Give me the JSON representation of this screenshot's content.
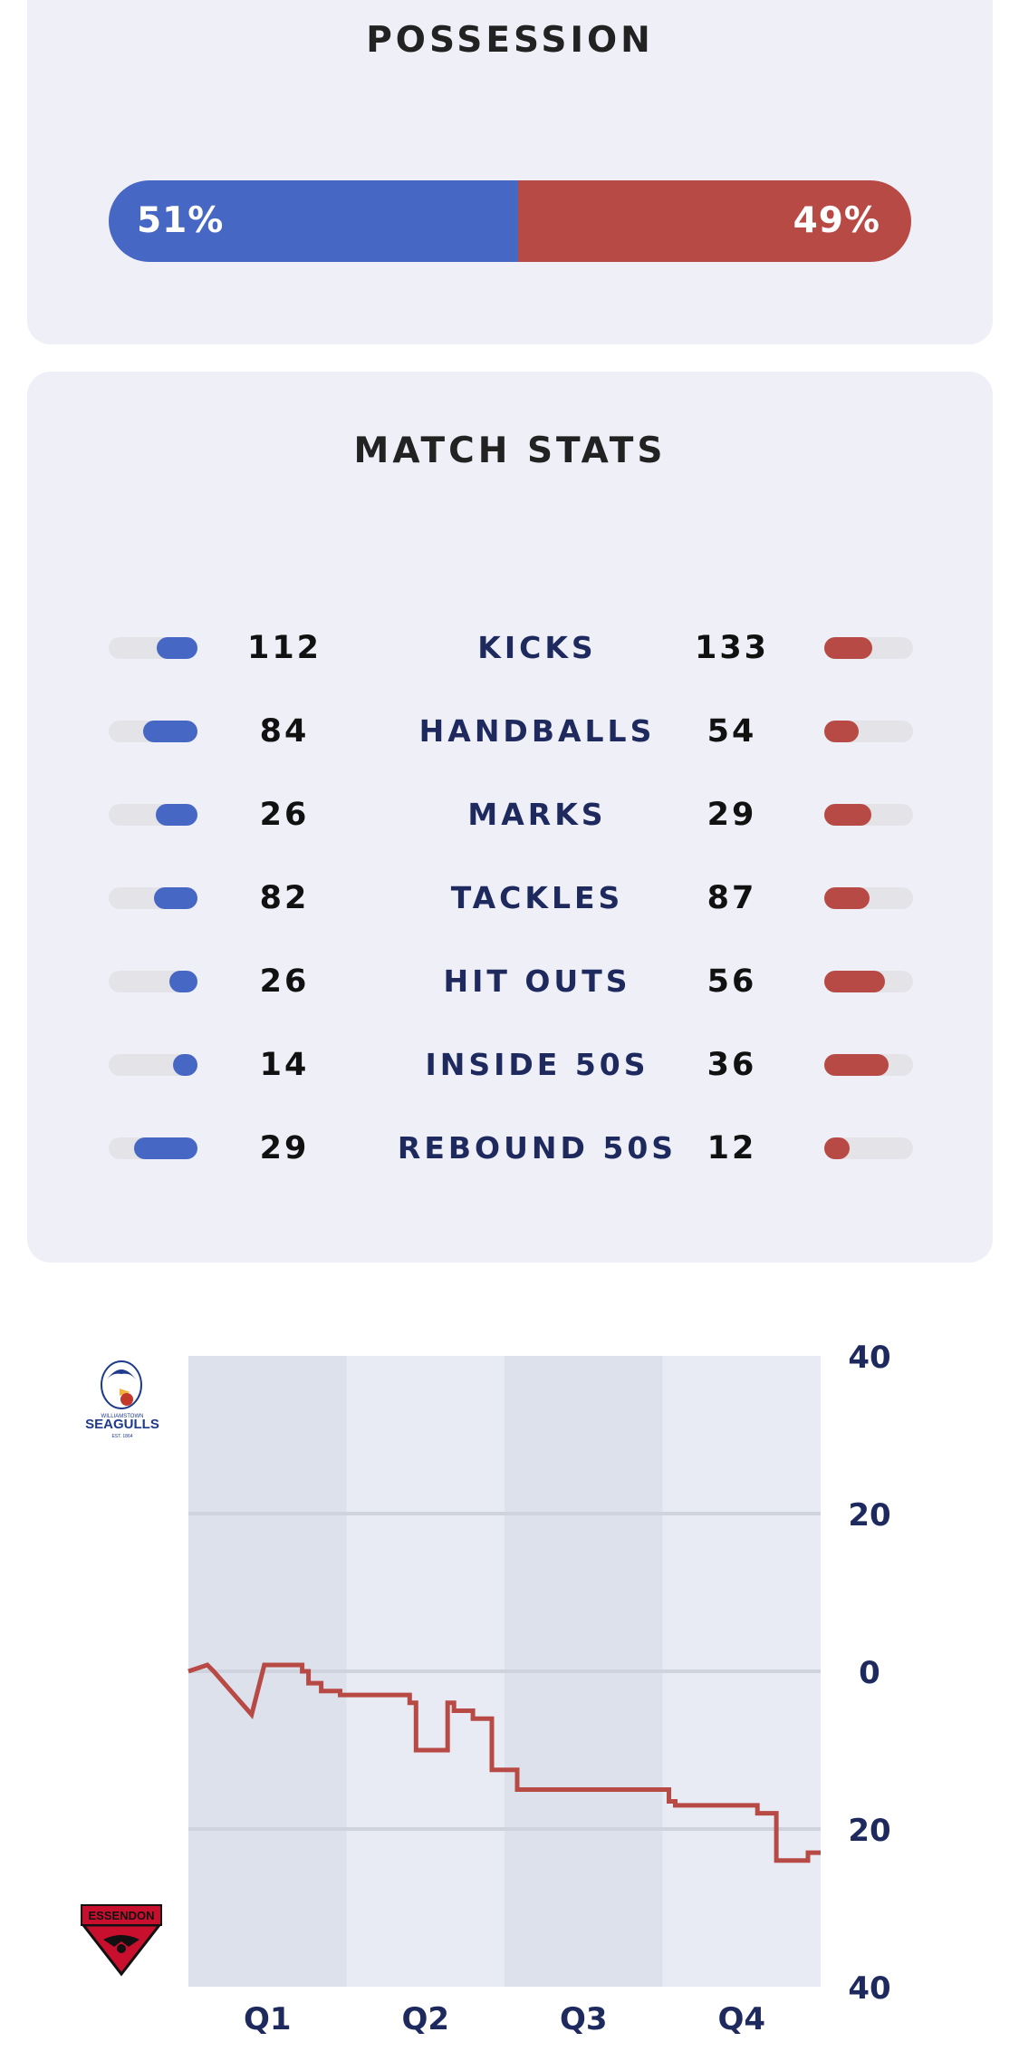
{
  "colors": {
    "home": "#4767c4",
    "away": "#b84a45",
    "label": "#1e2a5e",
    "band_dark": "#dde1ec",
    "band_light": "#e8ebf4",
    "grid": "#cfd3de"
  },
  "possession": {
    "title": "POSSESSION",
    "home_pct": 51,
    "away_pct": 49,
    "home_label": "51%",
    "away_label": "49%"
  },
  "match_stats": {
    "title": "MATCH STATS",
    "rows": [
      {
        "label": "KICKS",
        "home": "112",
        "away": "133",
        "home_fill": 0.46,
        "away_fill": 0.54
      },
      {
        "label": "HANDBALLS",
        "home": "84",
        "away": "54",
        "home_fill": 0.61,
        "away_fill": 0.39
      },
      {
        "label": "MARKS",
        "home": "26",
        "away": "29",
        "home_fill": 0.47,
        "away_fill": 0.53
      },
      {
        "label": "TACKLES",
        "home": "82",
        "away": "87",
        "home_fill": 0.49,
        "away_fill": 0.51
      },
      {
        "label": "HIT OUTS",
        "home": "26",
        "away": "56",
        "home_fill": 0.32,
        "away_fill": 0.68
      },
      {
        "label": "INSIDE 50S",
        "home": "14",
        "away": "36",
        "home_fill": 0.28,
        "away_fill": 0.72
      },
      {
        "label": "REBOUND 50S",
        "home": "29",
        "away": "12",
        "home_fill": 0.71,
        "away_fill": 0.29
      }
    ]
  },
  "worm_chart": {
    "home_team_logo": {
      "name": "williamstown-seagulls-logo",
      "text_top": "WILLIAMSTOWN",
      "text_main": "SEAGULLS",
      "text_est": "EST. 1864"
    },
    "away_team_logo": {
      "name": "essendon-logo",
      "text": "ESSENDON"
    }
  },
  "chart_data": {
    "type": "line",
    "title": "",
    "xlabel": "",
    "ylabel": "",
    "categories": [
      "Q1",
      "Q2",
      "Q3",
      "Q4"
    ],
    "y_tick_labels": [
      "40",
      "20",
      "0",
      "20",
      "40"
    ],
    "y_tick_values": [
      40,
      20,
      0,
      -20,
      -40
    ],
    "ylim": [
      -40,
      40
    ],
    "grid": true,
    "series": [
      {
        "x": [
          0,
          0.03,
          0.04,
          0.1,
          0.12,
          0.18,
          0.18,
          0.19,
          0.19,
          0.21,
          0.21,
          0.24,
          0.24,
          0.35,
          0.35,
          0.36,
          0.36,
          0.41,
          0.41,
          0.42,
          0.42,
          0.43,
          0.43,
          0.45,
          0.45,
          0.48,
          0.48,
          0.52,
          0.52,
          0.57,
          0.57,
          0.58,
          0.58,
          0.76,
          0.76,
          0.77,
          0.77,
          0.9,
          0.9,
          0.93,
          0.93,
          0.98,
          0.98,
          1.0
        ],
        "y": [
          0,
          0.8,
          0,
          -5.5,
          0.8,
          0.8,
          0,
          0,
          -1.5,
          -1.5,
          -2.5,
          -2.5,
          -3,
          -3,
          -4,
          -4,
          -10,
          -10,
          -4,
          -4,
          -5,
          -5,
          -5,
          -5,
          -6,
          -6,
          -12.5,
          -12.5,
          -15,
          -15,
          -15,
          -15,
          -15,
          -15,
          -16.5,
          -16.5,
          -17,
          -17,
          -18,
          -18,
          -24,
          -24,
          -23,
          -23
        ]
      }
    ]
  }
}
